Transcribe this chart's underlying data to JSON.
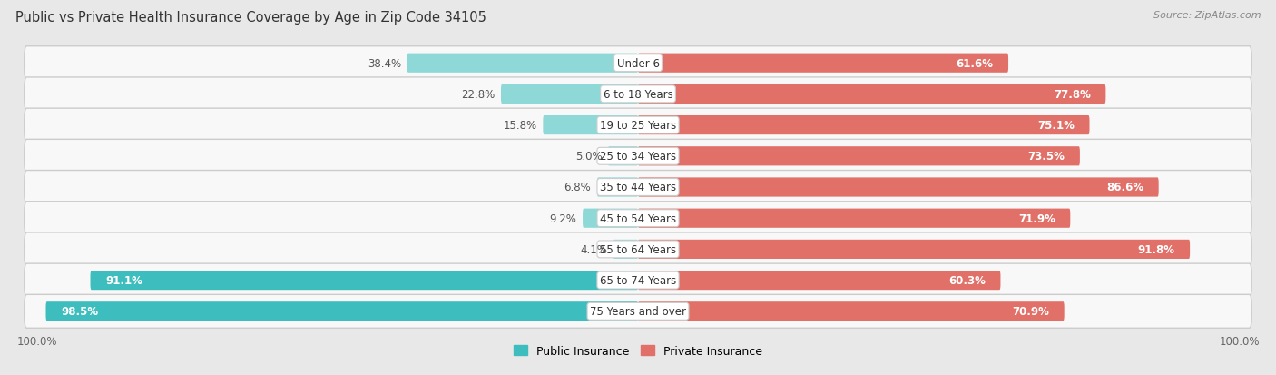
{
  "title": "Public vs Private Health Insurance Coverage by Age in Zip Code 34105",
  "source": "Source: ZipAtlas.com",
  "categories": [
    "Under 6",
    "6 to 18 Years",
    "19 to 25 Years",
    "25 to 34 Years",
    "35 to 44 Years",
    "45 to 54 Years",
    "55 to 64 Years",
    "65 to 74 Years",
    "75 Years and over"
  ],
  "public_values": [
    38.4,
    22.8,
    15.8,
    5.0,
    6.8,
    9.2,
    4.1,
    91.1,
    98.5
  ],
  "private_values": [
    61.6,
    77.8,
    75.1,
    73.5,
    86.6,
    71.9,
    91.8,
    60.3,
    70.9
  ],
  "public_color_strong": "#3dbdbd",
  "public_color_light": "#8fd8d8",
  "private_color_strong": "#e07068",
  "private_color_light": "#f0b0a8",
  "bar_height": 0.62,
  "bg_color": "#e8e8e8",
  "row_bg": "#f4f4f4",
  "row_border": "#d8d8d8",
  "label_fontsize": 8.5,
  "title_fontsize": 10.5,
  "axis_label_fontsize": 8.5,
  "legend_fontsize": 9,
  "xlim": 100,
  "threshold": 50
}
